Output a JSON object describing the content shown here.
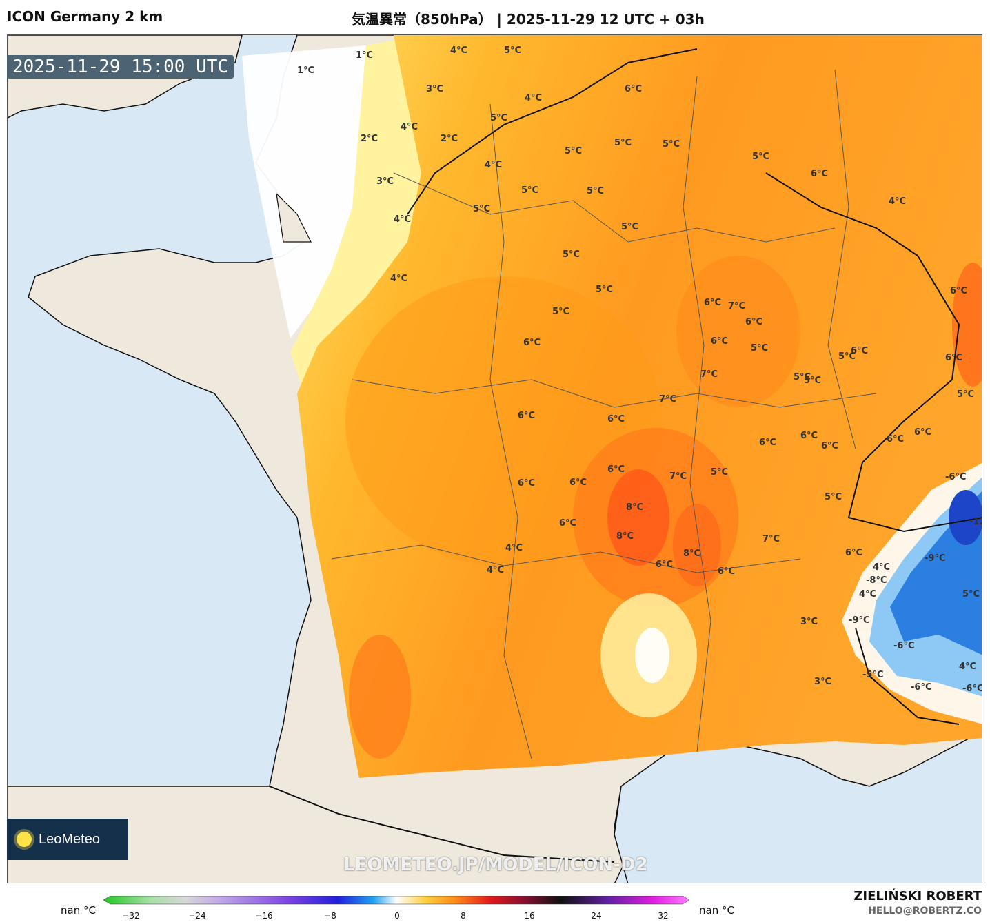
{
  "header": {
    "model": "ICON Germany 2 km",
    "title": "気温異常（850hPa） | 2025-11-29 12 UTC + 03h"
  },
  "map": {
    "valid_time": "2025-11-29 15:00 UTC",
    "watermark": "LEOMETEO.JP/MODEL/ICON-D2",
    "logo_text": "LeoMeteo",
    "labels": [
      "1°C",
      "1°C",
      "3°C",
      "4°C",
      "2°C",
      "3°C",
      "4°C",
      "2°C",
      "4°C",
      "4°C",
      "5°C",
      "5°C",
      "4°C",
      "5°C",
      "4°C",
      "5°C",
      "5°C",
      "5°C",
      "5°C",
      "5°C",
      "6°C",
      "5°C",
      "5°C",
      "6°C",
      "6°C",
      "6°C",
      "7°C",
      "7°C",
      "7°C",
      "8°C",
      "8°C",
      "8°C",
      "7°C",
      "7°C",
      "6°C",
      "6°C",
      "6°C",
      "6°C",
      "6°C",
      "5°C",
      "4°C",
      "4°C",
      "5°C",
      "6°C",
      "6°C",
      "6°C",
      "6°C",
      "5°C",
      "-12°C",
      "-9°C",
      "-8°C",
      "-9°C",
      "-6°C",
      "-5°C",
      "-6°C",
      "-6°C",
      "-6°C",
      "4°C",
      "3°C",
      "3°C",
      "4°C",
      "5°C",
      "5°C",
      "6°C",
      "6°C",
      "6°C",
      "6°C",
      "5°C",
      "5°C",
      "4°C",
      "6°C",
      "6°C",
      "5°C",
      "5°C",
      "5°C",
      "6°C",
      "6°C",
      "5°C",
      "6°C",
      "6°C",
      "4°C"
    ]
  },
  "legend": {
    "nan_left": "nan °C",
    "nan_right": "nan °C",
    "ticks": [
      "−32",
      "−24",
      "−16",
      "−8",
      "0",
      "8",
      "16",
      "24",
      "32"
    ]
  },
  "credits": {
    "author": "ZIELIŃSKI ROBERT",
    "email": "HELLO@ROBERTZ.CO"
  },
  "colors": {
    "sea": "#d9e8f5",
    "land": "#efe8dc",
    "anomaly_low": "#fff5a8",
    "anomaly_mid": "#ffc226",
    "anomaly_high": "#ff8c1a",
    "anomaly_peak": "#ff5a1a",
    "cold_alps": "#2a7fe0"
  }
}
